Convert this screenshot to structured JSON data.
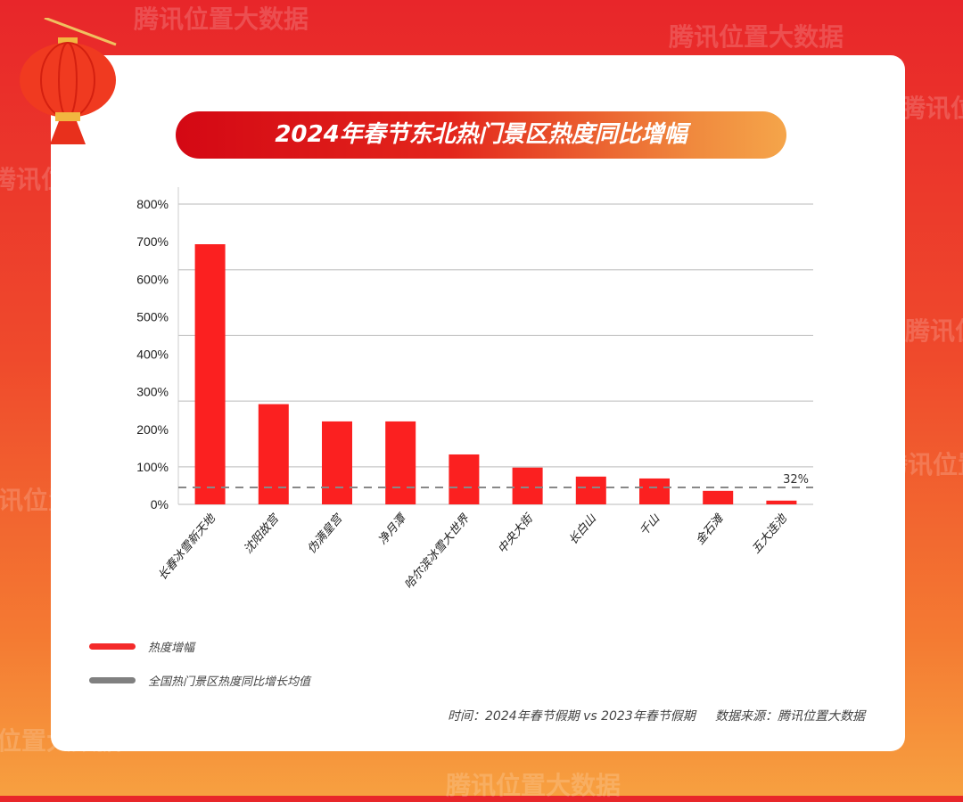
{
  "watermark": "腾讯位置大数据",
  "chart_data": {
    "type": "bar",
    "title": "2024年春节东北热门景区热度同比增幅",
    "categories": [
      "长春冰雪新天地",
      "沈阳故宫",
      "伪满皇宫",
      "净月潭",
      "哈尔滨冰雪大世界",
      "中央大街",
      "长白山",
      "千山",
      "金石滩",
      "五大连池"
    ],
    "series": [
      {
        "name": "热度增幅",
        "values": [
          693,
          267,
          221,
          221,
          133,
          98,
          74,
          69,
          36,
          10
        ],
        "color": "#fb2020"
      }
    ],
    "reference_line": {
      "name": "全国热门景区热度同比增长均值",
      "value": 32,
      "label": "32%",
      "color": "#888888"
    },
    "yticks": [
      "0%",
      "100%",
      "200%",
      "300%",
      "400%",
      "500%",
      "600%",
      "700%",
      "800%"
    ],
    "ylim": [
      0,
      800
    ],
    "xlabel": "",
    "ylabel": ""
  },
  "legend": {
    "bar": "热度增幅",
    "line": "全国热门景区热度同比增长均值"
  },
  "footer": "时间：2024年春节假期 vs 2023年春节假期     数据来源：腾讯位置大数据"
}
